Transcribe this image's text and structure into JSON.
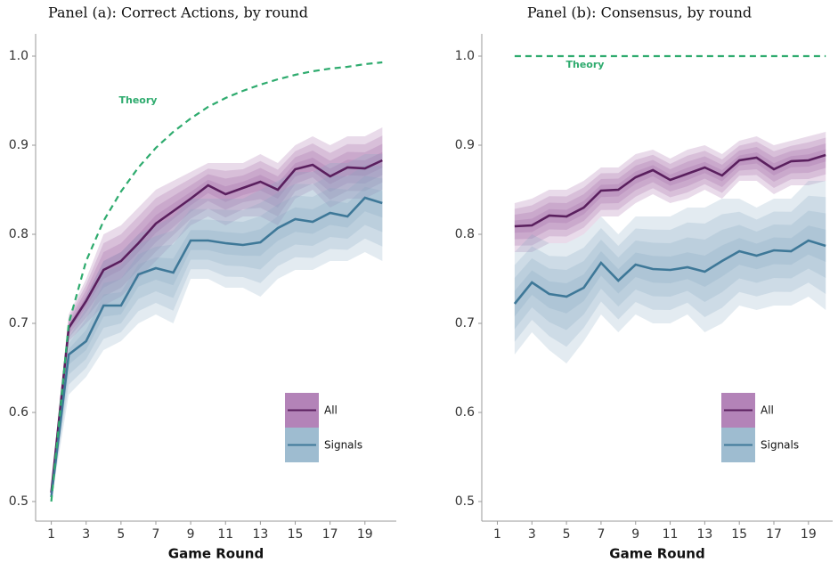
{
  "chart_data": [
    {
      "type": "line",
      "title": "Panel (a): Correct Actions, by round",
      "xlabel": "Game Round",
      "x": [
        1,
        2,
        3,
        4,
        5,
        6,
        7,
        8,
        9,
        10,
        11,
        12,
        13,
        14,
        15,
        16,
        17,
        18,
        19,
        20
      ],
      "xlim": [
        0.1,
        20.8
      ],
      "xticks": [
        1,
        3,
        5,
        7,
        9,
        11,
        13,
        15,
        17,
        19
      ],
      "ylim": [
        0.478,
        1.025
      ],
      "yticks": [
        0.5,
        0.6,
        0.7,
        0.8,
        0.9,
        {
          "value": 1,
          "label": "1.0"
        }
      ],
      "grid": false,
      "legend": "bottom-right",
      "series": [
        {
          "name": "All",
          "color": "#5a1f5e",
          "band_color": "#9a5aa0",
          "values": [
            0.51,
            0.695,
            0.725,
            0.76,
            0.77,
            0.79,
            0.812,
            0.826,
            0.84,
            0.855,
            0.845,
            0.852,
            0.859,
            0.85,
            0.873,
            0.878,
            0.865,
            0.875,
            0.874,
            0.883
          ],
          "upper": [
            0.52,
            0.71,
            0.75,
            0.8,
            0.81,
            0.83,
            0.85,
            0.86,
            0.87,
            0.88,
            0.88,
            0.88,
            0.89,
            0.88,
            0.9,
            0.91,
            0.9,
            0.91,
            0.91,
            0.92
          ],
          "lower": [
            0.5,
            0.68,
            0.7,
            0.72,
            0.73,
            0.75,
            0.77,
            0.79,
            0.81,
            0.82,
            0.81,
            0.82,
            0.82,
            0.81,
            0.84,
            0.85,
            0.83,
            0.84,
            0.84,
            0.85
          ]
        },
        {
          "name": "Signals",
          "color": "#3e7898",
          "band_color": "#7ea6c0",
          "values": [
            0.505,
            0.665,
            0.68,
            0.72,
            0.72,
            0.755,
            0.762,
            0.757,
            0.793,
            0.793,
            0.79,
            0.788,
            0.791,
            0.807,
            0.817,
            0.814,
            0.824,
            0.82,
            0.841,
            0.835
          ],
          "upper": [
            0.51,
            0.69,
            0.73,
            0.77,
            0.78,
            0.8,
            0.81,
            0.82,
            0.84,
            0.84,
            0.84,
            0.84,
            0.85,
            0.86,
            0.87,
            0.87,
            0.88,
            0.88,
            0.89,
            0.89
          ],
          "lower": [
            0.5,
            0.62,
            0.64,
            0.67,
            0.68,
            0.7,
            0.71,
            0.7,
            0.75,
            0.75,
            0.74,
            0.74,
            0.73,
            0.75,
            0.76,
            0.76,
            0.77,
            0.77,
            0.78,
            0.77
          ]
        }
      ],
      "theory": {
        "label": "Theory",
        "color": "#2eab6e",
        "values": [
          0.5,
          0.7,
          0.77,
          0.815,
          0.848,
          0.875,
          0.897,
          0.915,
          0.93,
          0.943,
          0.953,
          0.961,
          0.968,
          0.974,
          0.979,
          0.983,
          0.986,
          0.988,
          0.991,
          0.993
        ]
      }
    },
    {
      "type": "line",
      "title": "Panel (b): Consensus, by round",
      "xlabel": "Game Round",
      "x": [
        1,
        2,
        3,
        4,
        5,
        6,
        7,
        8,
        9,
        10,
        11,
        12,
        13,
        14,
        15,
        16,
        17,
        18,
        19,
        20
      ],
      "xlim": [
        0.1,
        20.4
      ],
      "xticks": [
        1,
        3,
        5,
        7,
        9,
        11,
        13,
        15,
        17,
        19
      ],
      "ylim": [
        0.478,
        1.025
      ],
      "yticks": [
        0.5,
        0.6,
        0.7,
        0.8,
        0.9,
        {
          "value": 1,
          "label": "1.0"
        }
      ],
      "grid": false,
      "legend": "bottom-right",
      "series": [
        {
          "name": "All",
          "color": "#5a1f5e",
          "band_color": "#9a5aa0",
          "values": [
            null,
            0.809,
            0.81,
            0.821,
            0.82,
            0.83,
            0.849,
            0.85,
            0.864,
            0.872,
            0.861,
            0.868,
            0.875,
            0.866,
            0.883,
            0.886,
            0.873,
            0.882,
            0.883,
            0.889
          ],
          "upper": [
            null,
            0.835,
            0.84,
            0.85,
            0.85,
            0.86,
            0.875,
            0.875,
            0.89,
            0.895,
            0.885,
            0.895,
            0.9,
            0.89,
            0.905,
            0.91,
            0.9,
            0.905,
            0.91,
            0.915
          ],
          "lower": [
            null,
            0.78,
            0.78,
            0.79,
            0.79,
            0.8,
            0.82,
            0.82,
            0.835,
            0.845,
            0.835,
            0.84,
            0.85,
            0.84,
            0.86,
            0.86,
            0.845,
            0.855,
            0.855,
            0.86
          ]
        },
        {
          "name": "Signals",
          "color": "#3e7898",
          "band_color": "#7ea6c0",
          "values": [
            null,
            0.722,
            0.746,
            0.733,
            0.73,
            0.74,
            0.768,
            0.748,
            0.766,
            0.761,
            0.76,
            0.763,
            0.758,
            0.77,
            0.781,
            0.776,
            0.782,
            0.781,
            0.793,
            0.787
          ],
          "upper": [
            null,
            0.78,
            0.8,
            0.79,
            0.79,
            0.8,
            0.82,
            0.8,
            0.82,
            0.82,
            0.82,
            0.83,
            0.83,
            0.84,
            0.84,
            0.83,
            0.84,
            0.84,
            0.86,
            0.86
          ],
          "lower": [
            null,
            0.665,
            0.69,
            0.67,
            0.655,
            0.68,
            0.71,
            0.69,
            0.71,
            0.7,
            0.7,
            0.71,
            0.69,
            0.7,
            0.72,
            0.715,
            0.72,
            0.72,
            0.73,
            0.715
          ]
        }
      ],
      "theory": {
        "label": "Theory",
        "color": "#2eab6e",
        "values": [
          null,
          1,
          1,
          1,
          1,
          1,
          1,
          1,
          1,
          1,
          1,
          1,
          1,
          1,
          1,
          1,
          1,
          1,
          1,
          1
        ]
      }
    }
  ]
}
